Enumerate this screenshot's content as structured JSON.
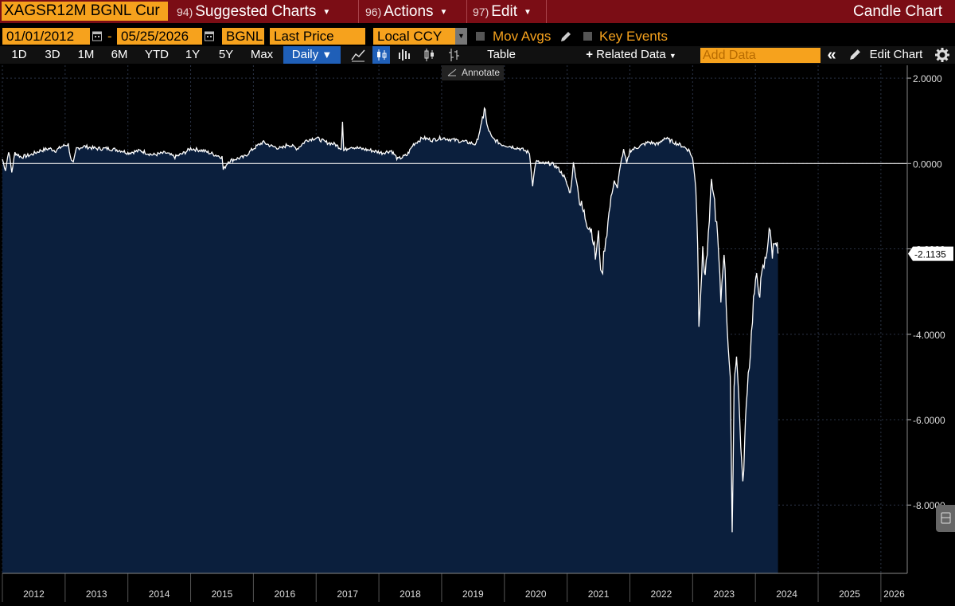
{
  "toolbar": {
    "ticker": "XAGSR12M BGNL Cur",
    "menus": [
      {
        "num": "94)",
        "label": "Suggested Charts"
      },
      {
        "num": "96)",
        "label": "Actions"
      },
      {
        "num": "97)",
        "label": "Edit"
      }
    ],
    "chart_title": "Candle Chart"
  },
  "settings": {
    "start_date": "01/01/2012",
    "end_date": "05/25/2026",
    "source": "BGNL",
    "field": "Last Price",
    "currency": "Local CCY",
    "mov_avgs_label": "Mov Avgs",
    "key_events_label": "Key Events"
  },
  "ranges": [
    "1D",
    "3D",
    "1M",
    "6M",
    "YTD",
    "1Y",
    "5Y",
    "Max"
  ],
  "frequency": "Daily",
  "table_label": "Table",
  "related_data_label": "Related Data",
  "add_data_placeholder": "Add Data",
  "edit_chart_label": "Edit Chart",
  "annotate_label": "Annotate",
  "colors": {
    "bar_red": "#7b0d15",
    "orange": "#f6a21d",
    "active_blue": "#1f5fb8",
    "plot_fill": "#0b1f3d"
  },
  "chart_data": {
    "type": "area",
    "xlabel": "",
    "ylabel": "",
    "x_ticks": [
      "2012",
      "2013",
      "2014",
      "2015",
      "2016",
      "2017",
      "2018",
      "2019",
      "2020",
      "2021",
      "2022",
      "2023",
      "2024",
      "2025",
      "2026"
    ],
    "y_ticks": [
      "2.0000",
      "0.0000",
      "-2.0000",
      "-4.0000",
      "-6.0000",
      "-8.0000"
    ],
    "ylim": [
      -9.6,
      2.3
    ],
    "xlim": [
      2012.0,
      2026.42
    ],
    "last_value_label": "-2.1135",
    "series": [
      {
        "values": [
          [
            2012.0,
            0.1
          ],
          [
            2012.05,
            -0.15
          ],
          [
            2012.1,
            0.3
          ],
          [
            2012.15,
            -0.2
          ],
          [
            2012.2,
            0.25
          ],
          [
            2012.3,
            0.15
          ],
          [
            2012.45,
            0.2
          ],
          [
            2012.6,
            0.3
          ],
          [
            2012.75,
            0.35
          ],
          [
            2012.85,
            0.3
          ],
          [
            2012.95,
            0.4
          ],
          [
            2013.05,
            0.45
          ],
          [
            2013.1,
            0.05
          ],
          [
            2013.13,
            0.0
          ],
          [
            2013.18,
            0.35
          ],
          [
            2013.3,
            0.4
          ],
          [
            2013.5,
            0.35
          ],
          [
            2013.7,
            0.35
          ],
          [
            2013.9,
            0.3
          ],
          [
            2014.0,
            0.25
          ],
          [
            2014.2,
            0.3
          ],
          [
            2014.4,
            0.2
          ],
          [
            2014.6,
            0.25
          ],
          [
            2014.75,
            0.15
          ],
          [
            2014.9,
            0.25
          ],
          [
            2015.0,
            0.35
          ],
          [
            2015.2,
            0.3
          ],
          [
            2015.4,
            0.2
          ],
          [
            2015.5,
            0.15
          ],
          [
            2015.52,
            -0.15
          ],
          [
            2015.6,
            0.05
          ],
          [
            2015.7,
            0.1
          ],
          [
            2015.85,
            0.15
          ],
          [
            2016.0,
            0.35
          ],
          [
            2016.15,
            0.5
          ],
          [
            2016.3,
            0.4
          ],
          [
            2016.45,
            0.35
          ],
          [
            2016.55,
            0.45
          ],
          [
            2016.7,
            0.35
          ],
          [
            2016.85,
            0.55
          ],
          [
            2017.0,
            0.6
          ],
          [
            2017.15,
            0.5
          ],
          [
            2017.3,
            0.45
          ],
          [
            2017.4,
            0.35
          ],
          [
            2017.42,
            1.0
          ],
          [
            2017.44,
            0.3
          ],
          [
            2017.55,
            0.4
          ],
          [
            2017.7,
            0.35
          ],
          [
            2017.9,
            0.3
          ],
          [
            2018.05,
            0.25
          ],
          [
            2018.2,
            0.3
          ],
          [
            2018.3,
            0.1
          ],
          [
            2018.45,
            0.2
          ],
          [
            2018.55,
            0.45
          ],
          [
            2018.7,
            0.6
          ],
          [
            2018.85,
            0.55
          ],
          [
            2019.0,
            0.6
          ],
          [
            2019.2,
            0.55
          ],
          [
            2019.4,
            0.5
          ],
          [
            2019.55,
            0.45
          ],
          [
            2019.65,
            1.0
          ],
          [
            2019.68,
            1.35
          ],
          [
            2019.72,
            0.9
          ],
          [
            2019.8,
            0.6
          ],
          [
            2019.95,
            0.45
          ],
          [
            2020.1,
            0.4
          ],
          [
            2020.25,
            0.35
          ],
          [
            2020.4,
            0.25
          ],
          [
            2020.45,
            -0.5
          ],
          [
            2020.5,
            0.05
          ],
          [
            2020.6,
            0.0
          ],
          [
            2020.75,
            0.0
          ],
          [
            2020.85,
            -0.1
          ],
          [
            2020.95,
            -0.3
          ],
          [
            2021.05,
            -0.7
          ],
          [
            2021.1,
            0.0
          ],
          [
            2021.15,
            -0.4
          ],
          [
            2021.2,
            -0.9
          ],
          [
            2021.3,
            -1.3
          ],
          [
            2021.4,
            -1.6
          ],
          [
            2021.45,
            -2.2
          ],
          [
            2021.5,
            -1.7
          ],
          [
            2021.55,
            -2.7
          ],
          [
            2021.6,
            -1.9
          ],
          [
            2021.65,
            -1.4
          ],
          [
            2021.7,
            -0.8
          ],
          [
            2021.75,
            -0.4
          ],
          [
            2021.8,
            -0.6
          ],
          [
            2021.85,
            0.0
          ],
          [
            2021.9,
            0.3
          ],
          [
            2021.95,
            0.0
          ],
          [
            2022.0,
            0.3
          ],
          [
            2022.15,
            0.4
          ],
          [
            2022.3,
            0.5
          ],
          [
            2022.45,
            0.45
          ],
          [
            2022.55,
            0.6
          ],
          [
            2022.7,
            0.5
          ],
          [
            2022.85,
            0.4
          ],
          [
            2022.95,
            0.3
          ],
          [
            2023.0,
            0.1
          ],
          [
            2023.05,
            -0.5
          ],
          [
            2023.08,
            -1.8
          ],
          [
            2023.1,
            -3.7
          ],
          [
            2023.13,
            -2.9
          ],
          [
            2023.16,
            -2.1
          ],
          [
            2023.2,
            -2.6
          ],
          [
            2023.25,
            -1.8
          ],
          [
            2023.3,
            -0.4
          ],
          [
            2023.35,
            -0.9
          ],
          [
            2023.4,
            -1.8
          ],
          [
            2023.45,
            -3.2
          ],
          [
            2023.5,
            -2.0
          ],
          [
            2023.55,
            -3.8
          ],
          [
            2023.6,
            -5.0
          ],
          [
            2023.63,
            -8.8
          ],
          [
            2023.66,
            -5.2
          ],
          [
            2023.7,
            -4.4
          ],
          [
            2023.75,
            -6.0
          ],
          [
            2023.8,
            -7.6
          ],
          [
            2023.83,
            -6.5
          ],
          [
            2023.87,
            -5.2
          ],
          [
            2023.92,
            -4.4
          ],
          [
            2023.97,
            -3.2
          ],
          [
            2024.02,
            -2.7
          ],
          [
            2024.07,
            -3.0
          ],
          [
            2024.12,
            -2.5
          ],
          [
            2024.17,
            -2.2
          ],
          [
            2024.22,
            -1.5
          ],
          [
            2024.27,
            -2.1
          ],
          [
            2024.32,
            -1.7
          ],
          [
            2024.36,
            -2.11
          ]
        ]
      }
    ]
  }
}
